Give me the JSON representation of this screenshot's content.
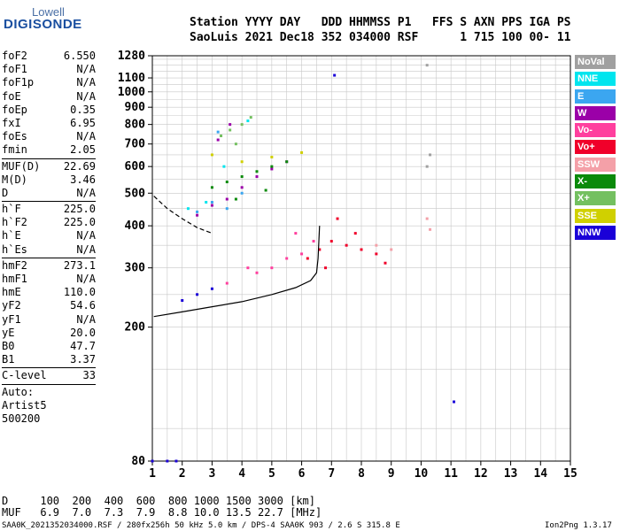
{
  "logo": {
    "line1": "Lowell",
    "line2": "DIGISONDE"
  },
  "header": {
    "row1": "Station YYYY DAY   DDD HHMMSS P1   FFS S AXN PPS IGA PS",
    "row2": "SaoLuis 2021 Dec18 352 034000 RSF      1 715 100 00- 11"
  },
  "params": {
    "groups": [
      [
        [
          "foF2",
          "6.550"
        ],
        [
          "foF1",
          "N/A"
        ],
        [
          "foF1p",
          "N/A"
        ],
        [
          "foE",
          "N/A"
        ],
        [
          "foEp",
          "0.35"
        ],
        [
          "fxI",
          "6.95"
        ],
        [
          "foEs",
          "N/A"
        ],
        [
          "fmin",
          "2.05"
        ]
      ],
      [
        [
          "MUF(D)",
          "22.69"
        ],
        [
          "M(D)",
          "3.46"
        ],
        [
          "D",
          "N/A"
        ]
      ],
      [
        [
          "h`F",
          "225.0"
        ],
        [
          "h`F2",
          "225.0"
        ],
        [
          "h`E",
          "N/A"
        ],
        [
          "h`Es",
          "N/A"
        ]
      ],
      [
        [
          "hmF2",
          "273.1"
        ],
        [
          "hmF1",
          "N/A"
        ],
        [
          "hmE",
          "110.0"
        ],
        [
          "yF2",
          "54.6"
        ],
        [
          "yF1",
          "N/A"
        ],
        [
          "yE",
          "20.0"
        ],
        [
          "B0",
          "47.7"
        ],
        [
          "B1",
          "3.37"
        ]
      ],
      [
        [
          "C-level",
          "33"
        ]
      ]
    ],
    "auto": [
      "Auto:",
      "Artist5",
      "500200"
    ]
  },
  "legend": [
    {
      "label": "NoVal",
      "color": "#a0a0a0"
    },
    {
      "label": "NNE",
      "color": "#00e5ee"
    },
    {
      "label": "E",
      "color": "#3ba6f0"
    },
    {
      "label": "W",
      "color": "#9b00a8"
    },
    {
      "label": "Vo-",
      "color": "#ff3f9e"
    },
    {
      "label": "Vo+",
      "color": "#f0002a"
    },
    {
      "label": "SSW",
      "color": "#f4a0a8"
    },
    {
      "label": "X-",
      "color": "#0a8a0a"
    },
    {
      "label": "X+",
      "color": "#74c060"
    },
    {
      "label": "SSE",
      "color": "#d0d000"
    },
    {
      "label": "NNW",
      "color": "#1a00d8"
    }
  ],
  "chart_data": {
    "type": "scatter",
    "title": "",
    "xlabel": "",
    "ylabel": "",
    "xlim": [
      1,
      15
    ],
    "ylim": [
      80,
      1280
    ],
    "y_scale": "log",
    "x_ticks": [
      1,
      2,
      3,
      4,
      5,
      6,
      7,
      8,
      9,
      10,
      11,
      12,
      13,
      14,
      15
    ],
    "y_ticks": [
      80,
      200,
      300,
      400,
      500,
      600,
      700,
      800,
      900,
      1000,
      1100,
      1280
    ],
    "grid": true,
    "series": [
      {
        "name": "Vo+",
        "points": [
          [
            6.2,
            320
          ],
          [
            6.6,
            340
          ],
          [
            7.0,
            360
          ],
          [
            7.5,
            350
          ],
          [
            8.0,
            340
          ],
          [
            8.5,
            330
          ],
          [
            7.2,
            420
          ],
          [
            6.8,
            300
          ],
          [
            7.8,
            380
          ],
          [
            8.8,
            310
          ]
        ]
      },
      {
        "name": "Vo-",
        "points": [
          [
            5.0,
            300
          ],
          [
            5.5,
            320
          ],
          [
            6.0,
            330
          ],
          [
            4.5,
            290
          ],
          [
            5.8,
            380
          ],
          [
            6.4,
            360
          ],
          [
            3.5,
            270
          ],
          [
            4.2,
            300
          ]
        ]
      },
      {
        "name": "W",
        "points": [
          [
            3.0,
            460
          ],
          [
            3.5,
            480
          ],
          [
            4.0,
            520
          ],
          [
            4.5,
            560
          ],
          [
            5.0,
            590
          ],
          [
            5.5,
            620
          ],
          [
            2.5,
            430
          ],
          [
            3.2,
            720
          ],
          [
            3.6,
            800
          ]
        ]
      },
      {
        "name": "X-",
        "points": [
          [
            3.0,
            520
          ],
          [
            3.5,
            540
          ],
          [
            4.0,
            560
          ],
          [
            4.5,
            580
          ],
          [
            5.0,
            600
          ],
          [
            5.5,
            620
          ],
          [
            3.8,
            480
          ],
          [
            4.8,
            510
          ]
        ]
      },
      {
        "name": "X+",
        "points": [
          [
            3.3,
            740
          ],
          [
            3.6,
            770
          ],
          [
            4.0,
            800
          ],
          [
            4.3,
            840
          ],
          [
            3.8,
            700
          ]
        ]
      },
      {
        "name": "E",
        "points": [
          [
            2.5,
            440
          ],
          [
            3.0,
            470
          ],
          [
            3.5,
            450
          ],
          [
            4.0,
            500
          ],
          [
            3.2,
            760
          ]
        ]
      },
      {
        "name": "NNE",
        "points": [
          [
            2.2,
            450
          ],
          [
            2.8,
            470
          ],
          [
            3.4,
            600
          ],
          [
            4.2,
            820
          ]
        ]
      },
      {
        "name": "NNW",
        "points": [
          [
            1.0,
            80
          ],
          [
            1.5,
            80
          ],
          [
            1.8,
            80
          ],
          [
            2.0,
            240
          ],
          [
            2.5,
            250
          ],
          [
            3.0,
            260
          ],
          [
            11.1,
            120
          ],
          [
            7.1,
            1120
          ]
        ]
      },
      {
        "name": "SSW",
        "points": [
          [
            10.2,
            420
          ],
          [
            10.3,
            390
          ],
          [
            8.5,
            350
          ],
          [
            9.0,
            340
          ]
        ]
      },
      {
        "name": "SSE",
        "points": [
          [
            3.0,
            650
          ],
          [
            4.0,
            620
          ],
          [
            5.0,
            640
          ],
          [
            6.0,
            660
          ]
        ]
      },
      {
        "name": "NoVal",
        "points": [
          [
            10.2,
            600
          ],
          [
            10.3,
            650
          ],
          [
            10.2,
            1200
          ]
        ]
      }
    ],
    "profile_curve": [
      [
        1.05,
        215
      ],
      [
        2,
        222
      ],
      [
        3,
        230
      ],
      [
        4,
        238
      ],
      [
        5,
        250
      ],
      [
        5.8,
        262
      ],
      [
        6.3,
        275
      ],
      [
        6.5,
        290
      ],
      [
        6.55,
        320
      ],
      [
        6.6,
        400
      ]
    ],
    "dashed_curve": [
      [
        1.05,
        490
      ],
      [
        1.5,
        450
      ],
      [
        2,
        420
      ],
      [
        2.5,
        395
      ],
      [
        3,
        380
      ]
    ]
  },
  "footer": {
    "d_row": "D     100  200  400  600  800 1000 1500 3000 [km]",
    "muf_row": "MUF   6.9  7.0  7.3  7.9  8.8 10.0 13.5 22.7 [MHz]",
    "file_line": "SAA0K_2021352034000.RSF / 280fx256h 50 kHz 5.0 km / DPS-4 SAA0K 903 / 2.6 S 315.8 E",
    "version": "Ion2Png 1.3.17"
  }
}
